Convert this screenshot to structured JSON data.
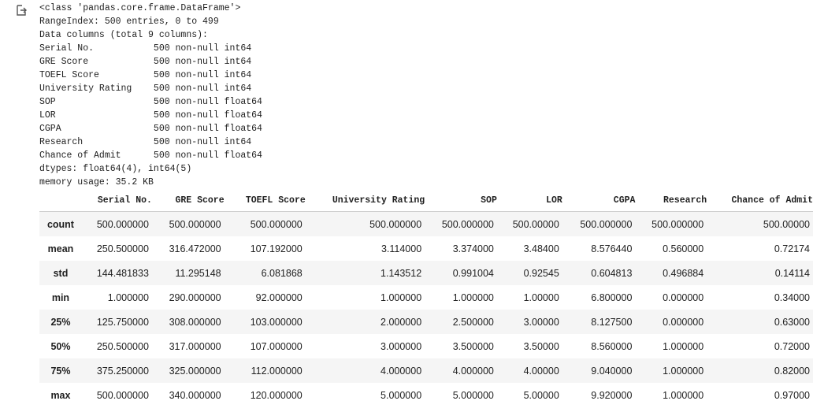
{
  "info_lines": [
    "<class 'pandas.core.frame.DataFrame'>",
    "RangeIndex: 500 entries, 0 to 499",
    "Data columns (total 9 columns):",
    "Serial No.           500 non-null int64",
    "GRE Score            500 non-null int64",
    "TOEFL Score          500 non-null int64",
    "University Rating    500 non-null int64",
    "SOP                  500 non-null float64",
    "LOR                  500 non-null float64",
    "CGPA                 500 non-null float64",
    "Research             500 non-null int64",
    "Chance of Admit      500 non-null float64",
    "dtypes: float64(4), int64(5)",
    "memory usage: 35.2 KB"
  ],
  "table": {
    "columns": [
      "",
      "Serial No.",
      "GRE Score",
      "TOEFL Score",
      "University Rating",
      "SOP",
      "LOR",
      "CGPA",
      "Research",
      "Chance of Admit"
    ],
    "rows": [
      [
        "count",
        "500.000000",
        "500.000000",
        "500.000000",
        "500.000000",
        "500.000000",
        "500.00000",
        "500.000000",
        "500.000000",
        "500.00000"
      ],
      [
        "mean",
        "250.500000",
        "316.472000",
        "107.192000",
        "3.114000",
        "3.374000",
        "3.48400",
        "8.576440",
        "0.560000",
        "0.72174"
      ],
      [
        "std",
        "144.481833",
        "11.295148",
        "6.081868",
        "1.143512",
        "0.991004",
        "0.92545",
        "0.604813",
        "0.496884",
        "0.14114"
      ],
      [
        "min",
        "1.000000",
        "290.000000",
        "92.000000",
        "1.000000",
        "1.000000",
        "1.00000",
        "6.800000",
        "0.000000",
        "0.34000"
      ],
      [
        "25%",
        "125.750000",
        "308.000000",
        "103.000000",
        "2.000000",
        "2.500000",
        "3.00000",
        "8.127500",
        "0.000000",
        "0.63000"
      ],
      [
        "50%",
        "250.500000",
        "317.000000",
        "107.000000",
        "3.000000",
        "3.500000",
        "3.50000",
        "8.560000",
        "1.000000",
        "0.72000"
      ],
      [
        "75%",
        "375.250000",
        "325.000000",
        "112.000000",
        "4.000000",
        "4.000000",
        "4.00000",
        "9.040000",
        "1.000000",
        "0.82000"
      ],
      [
        "max",
        "500.000000",
        "340.000000",
        "120.000000",
        "5.000000",
        "5.000000",
        "5.00000",
        "9.920000",
        "1.000000",
        "0.97000"
      ]
    ]
  },
  "icons": {
    "output": "output-arrow-icon"
  }
}
